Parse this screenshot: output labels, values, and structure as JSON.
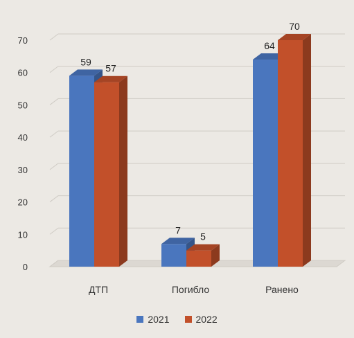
{
  "chart_data": {
    "type": "bar",
    "categories": [
      "ДТП",
      "Погибло",
      "Ранено"
    ],
    "series": [
      {
        "name": "2021",
        "values": [
          59,
          7,
          64
        ],
        "color": "#4a76be"
      },
      {
        "name": "2022",
        "values": [
          57,
          5,
          70
        ],
        "color": "#c2502a"
      }
    ],
    "ylim": [
      0,
      70
    ],
    "yticks": [
      0,
      10,
      20,
      30,
      40,
      50,
      60,
      70
    ],
    "grid": true,
    "legend": "bottom",
    "data_labels": true,
    "style": "3d-clustered-column"
  }
}
